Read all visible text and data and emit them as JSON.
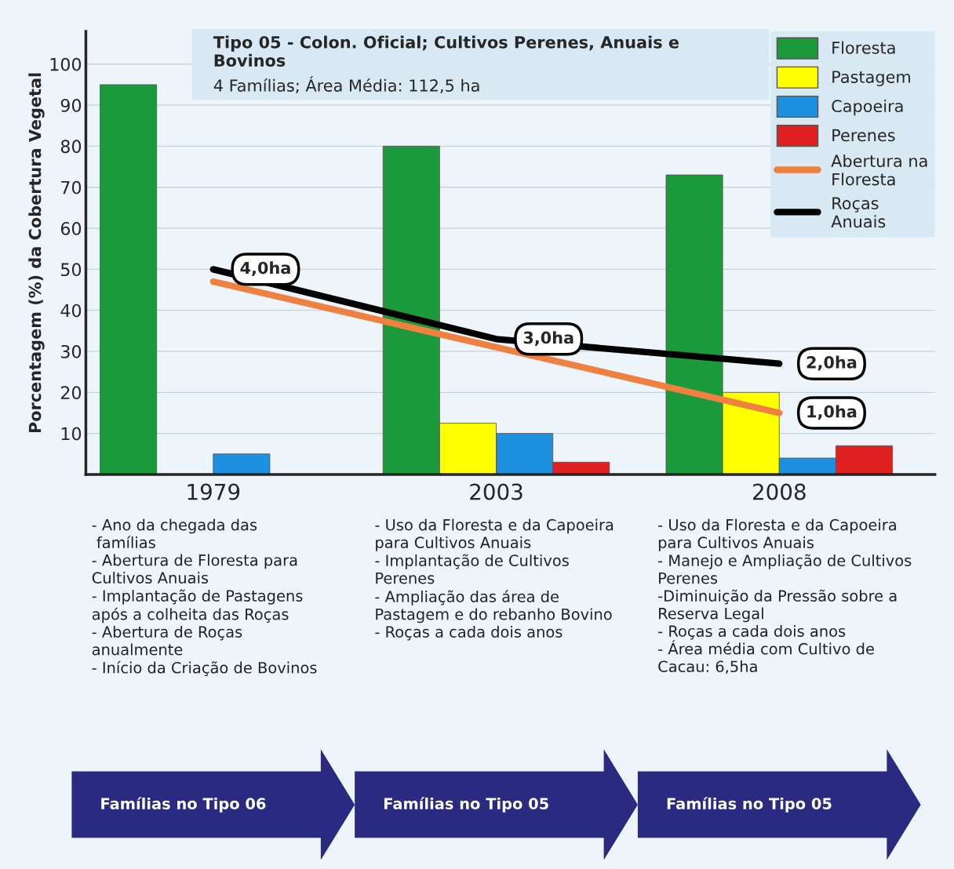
{
  "chart_data": {
    "type": "bar",
    "title": "Tipo 05 - Colon. Oficial; Cultivos Perenes, Anuais e\nBovinos",
    "subtitle": "4 Famílias; Área Média: 112,5 ha",
    "ylabel": "Porcentagem (%) da Cobertura Vegetal",
    "categories": [
      "1979",
      "2003",
      "2008"
    ],
    "series": [
      {
        "name": "Floresta",
        "color": "#1a9a3a",
        "values": [
          95,
          80,
          73
        ]
      },
      {
        "name": "Pastagem",
        "color": "#ffff00",
        "values": [
          null,
          12.5,
          20
        ]
      },
      {
        "name": "Capoeira",
        "color": "#1e90e0",
        "values": [
          5,
          10,
          4
        ]
      },
      {
        "name": "Perenes",
        "color": "#e02020",
        "values": [
          null,
          3,
          7
        ]
      },
      {
        "name": "Abertura na\nFloresta",
        "type": "line",
        "color": "#f08040",
        "values": [
          47,
          31,
          15
        ]
      },
      {
        "name": "Roças\nAnuais",
        "type": "line",
        "color": "#000000",
        "values": [
          50,
          33,
          27
        ]
      }
    ],
    "ylim": [
      0,
      108
    ],
    "yticks": [
      10,
      20,
      30,
      40,
      50,
      60,
      70,
      80,
      90,
      100
    ],
    "grid": "y",
    "legend": "top right",
    "annotations": [
      {
        "text": "4,0ha",
        "x": "1979",
        "y": 50
      },
      {
        "text": "3,0ha",
        "x": "2003",
        "y": 33
      },
      {
        "text": "2,0ha",
        "x": "2008",
        "y": 27
      },
      {
        "text": "1,0ha",
        "x": "2008",
        "y": 15
      },
      "- Ano da chegada das\n famílias\n- Abertura de Floresta para\nCultivos Anuais\n- Implantação de Pastagens\napós a colheita das Roças\n- Abertura de Roças\nanualmente\n- Início da Criação de Bovinos",
      "- Uso da Floresta e da Capoeira\npara Cultivos Anuais\n- Implantação de Cultivos\nPerenes\n- Ampliação das área de\nPastagem e do rebanho Bovino\n- Roças a cada dois anos",
      "- Uso da Floresta e da Capoeira\npara Cultivos Anuais\n- Manejo e Ampliação de Cultivos\nPerenes\n-Diminuição da Pressão sobre a\nReserva Legal\n- Roças a cada dois anos\n- Área média com Cultivo de\nCacau: 6,5ha",
      "Famílias no Tipo 06",
      "Famílias no Tipo 05",
      "Famílias no Tipo 05"
    ]
  }
}
